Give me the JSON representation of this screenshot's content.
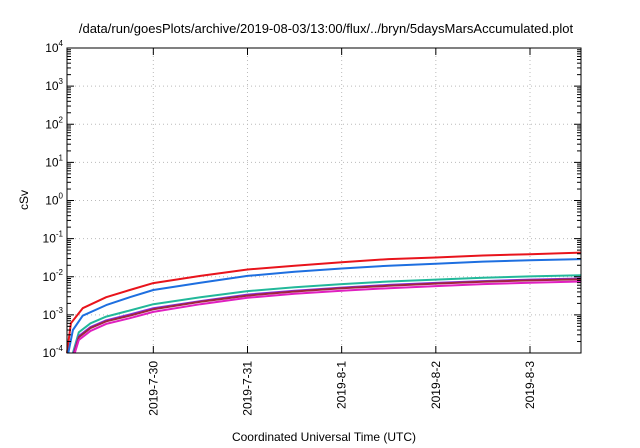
{
  "chart_data": {
    "type": "line",
    "title": "/data/run/goesPlots/archive/2019-08-03/13:00/flux/../bryn/5daysMarsAccumulated.plot",
    "xlabel": "Coordinated Universal Time (UTC)",
    "ylabel": "cSv",
    "yscale": "log",
    "ylim": [
      0.0001,
      10000
    ],
    "xlim": [
      "2019-07-29T02:00",
      "2019-08-03T13:00"
    ],
    "grid": true,
    "y_ticks": [
      {
        "base": "10",
        "exp": "-4"
      },
      {
        "base": "10",
        "exp": "-3"
      },
      {
        "base": "10",
        "exp": "-2"
      },
      {
        "base": "10",
        "exp": "-1"
      },
      {
        "base": "10",
        "exp": "0"
      },
      {
        "base": "10",
        "exp": "1"
      },
      {
        "base": "10",
        "exp": "2"
      },
      {
        "base": "10",
        "exp": "3"
      },
      {
        "base": "10",
        "exp": "4"
      }
    ],
    "x_ticks": [
      "2019-7-30",
      "2019-7-31",
      "2019-8-1",
      "2019-8-2",
      "2019-8-3"
    ],
    "series": [
      {
        "color": "#e8141c",
        "x": [
          "2019-07-29T02:00",
          "2019-07-29T03:00",
          "2019-07-29T06:00",
          "2019-07-29T12:00",
          "2019-07-29T18:00",
          "2019-07-30T00:00",
          "2019-07-30T12:00",
          "2019-07-31T00:00",
          "2019-07-31T12:00",
          "2019-08-01T00:00",
          "2019-08-01T12:00",
          "2019-08-02T00:00",
          "2019-08-02T12:00",
          "2019-08-03T00:00",
          "2019-08-03T13:00"
        ],
        "y": [
          0.0001,
          0.0006,
          0.0015,
          0.0029,
          0.0045,
          0.0068,
          0.0105,
          0.0155,
          0.0195,
          0.024,
          0.029,
          0.032,
          0.036,
          0.039,
          0.043
        ]
      },
      {
        "color": "#1e6fe0",
        "x": [
          "2019-07-29T02:20",
          "2019-07-29T03:30",
          "2019-07-29T06:00",
          "2019-07-29T12:00",
          "2019-07-29T18:00",
          "2019-07-30T00:00",
          "2019-07-30T12:00",
          "2019-07-31T00:00",
          "2019-07-31T12:00",
          "2019-08-01T00:00",
          "2019-08-01T12:00",
          "2019-08-02T00:00",
          "2019-08-02T12:00",
          "2019-08-03T00:00",
          "2019-08-03T13:00"
        ],
        "y": [
          0.0001,
          0.0004,
          0.00095,
          0.0018,
          0.0029,
          0.0045,
          0.007,
          0.0105,
          0.0135,
          0.0165,
          0.0195,
          0.022,
          0.025,
          0.027,
          0.029
        ]
      },
      {
        "color": "#22b89a",
        "x": [
          "2019-07-29T03:30",
          "2019-07-29T05:00",
          "2019-07-29T08:00",
          "2019-07-29T12:00",
          "2019-07-29T18:00",
          "2019-07-30T00:00",
          "2019-07-30T12:00",
          "2019-07-31T00:00",
          "2019-07-31T12:00",
          "2019-08-01T00:00",
          "2019-08-01T12:00",
          "2019-08-02T00:00",
          "2019-08-02T12:00",
          "2019-08-03T00:00",
          "2019-08-03T13:00"
        ],
        "y": [
          0.0001,
          0.00035,
          0.0006,
          0.0009,
          0.0013,
          0.0019,
          0.0029,
          0.0042,
          0.0053,
          0.0064,
          0.0075,
          0.0084,
          0.0094,
          0.0102,
          0.011
        ]
      },
      {
        "color": "#8a2be2",
        "x": [
          "2019-07-29T03:40",
          "2019-07-29T05:00",
          "2019-07-29T08:00",
          "2019-07-29T12:00",
          "2019-07-29T18:00",
          "2019-07-30T00:00",
          "2019-07-30T12:00",
          "2019-07-31T00:00",
          "2019-07-31T12:00",
          "2019-08-01T00:00",
          "2019-08-01T12:00",
          "2019-08-02T00:00",
          "2019-08-02T12:00",
          "2019-08-03T00:00",
          "2019-08-03T13:00"
        ],
        "y": [
          0.0001,
          0.00028,
          0.00048,
          0.00072,
          0.00102,
          0.0015,
          0.0023,
          0.0034,
          0.0043,
          0.0052,
          0.0061,
          0.0069,
          0.0077,
          0.0084,
          0.009
        ]
      },
      {
        "color": "#a0263c",
        "x": [
          "2019-07-29T03:50",
          "2019-07-29T05:00",
          "2019-07-29T08:00",
          "2019-07-29T12:00",
          "2019-07-29T18:00",
          "2019-07-30T00:00",
          "2019-07-30T12:00",
          "2019-07-31T00:00",
          "2019-07-31T12:00",
          "2019-08-01T00:00",
          "2019-08-01T12:00",
          "2019-08-02T00:00",
          "2019-08-02T12:00",
          "2019-08-03T00:00",
          "2019-08-03T13:00"
        ],
        "y": [
          0.0001,
          0.00026,
          0.00045,
          0.00068,
          0.00096,
          0.0014,
          0.0022,
          0.0032,
          0.0041,
          0.005,
          0.0058,
          0.0066,
          0.0074,
          0.008,
          0.0086
        ]
      },
      {
        "color": "#e020c0",
        "x": [
          "2019-07-29T04:00",
          "2019-07-29T05:00",
          "2019-07-29T08:00",
          "2019-07-29T12:00",
          "2019-07-29T18:00",
          "2019-07-30T00:00",
          "2019-07-30T12:00",
          "2019-07-31T00:00",
          "2019-07-31T12:00",
          "2019-08-01T00:00",
          "2019-08-01T12:00",
          "2019-08-02T00:00",
          "2019-08-02T12:00",
          "2019-08-03T00:00",
          "2019-08-03T13:00"
        ],
        "y": [
          0.0001,
          0.00022,
          0.00038,
          0.00058,
          0.00082,
          0.0012,
          0.0019,
          0.0028,
          0.0036,
          0.0043,
          0.005,
          0.0057,
          0.0064,
          0.007,
          0.0075
        ]
      }
    ]
  }
}
